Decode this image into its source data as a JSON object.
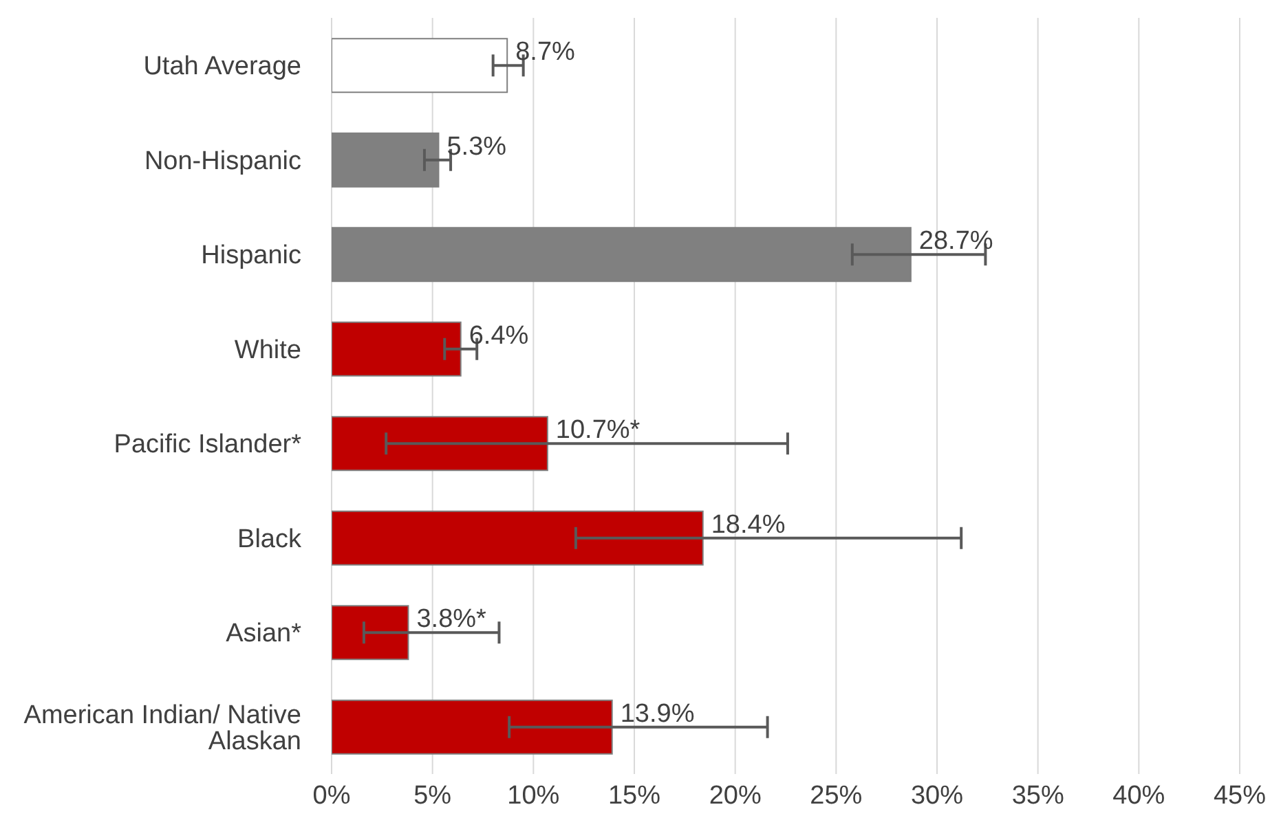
{
  "chart_data": {
    "type": "bar",
    "orientation": "horizontal",
    "categories": [
      "Utah Average",
      "Non-Hispanic",
      "Hispanic",
      "White",
      "Pacific Islander*",
      "Black",
      "Asian*",
      "American Indian/ Native Alaskan"
    ],
    "values": [
      8.7,
      5.3,
      28.7,
      6.4,
      10.7,
      18.4,
      3.8,
      13.9
    ],
    "colors": [
      "#ffffff",
      "#808080",
      "#808080",
      "#c00000",
      "#c00000",
      "#c00000",
      "#c00000",
      "#c00000"
    ],
    "errors": [
      [
        8.0,
        9.5
      ],
      [
        4.6,
        5.9
      ],
      [
        25.8,
        32.4
      ],
      [
        5.6,
        7.2
      ],
      [
        2.7,
        22.6
      ],
      [
        12.1,
        31.2
      ],
      [
        1.6,
        8.3
      ],
      [
        8.8,
        21.6
      ]
    ],
    "value_labels": [
      "8.7%",
      "5.3%",
      "28.7%",
      "6.4%",
      "10.7%*",
      "18.4%",
      "3.8%*",
      "13.9%"
    ],
    "xlim": [
      0,
      45
    ],
    "xticks": [
      {
        "value": 0,
        "label": "0%"
      },
      {
        "value": 5,
        "label": "5%"
      },
      {
        "value": 10,
        "label": "10%"
      },
      {
        "value": 15,
        "label": "15%"
      },
      {
        "value": 20,
        "label": "20%"
      },
      {
        "value": 25,
        "label": "25%"
      },
      {
        "value": 30,
        "label": "30%"
      },
      {
        "value": 35,
        "label": "35%"
      },
      {
        "value": 40,
        "label": "40%"
      },
      {
        "value": 45,
        "label": "45%"
      }
    ],
    "grid": "x"
  }
}
